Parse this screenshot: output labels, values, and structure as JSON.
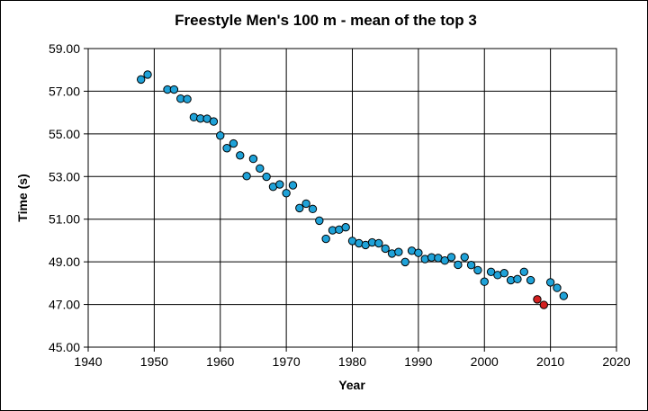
{
  "chart_data": {
    "type": "scatter",
    "title": "Freestyle Men's 100 m - mean of the top 3",
    "xlabel": "Year",
    "ylabel": "Time (s)",
    "xlim": [
      1940,
      2020
    ],
    "ylim": [
      45,
      59
    ],
    "xticks": [
      "1940",
      "1950",
      "1960",
      "1970",
      "1980",
      "1990",
      "2000",
      "2010",
      "2020"
    ],
    "yticks": [
      "45.00",
      "47.00",
      "49.00",
      "51.00",
      "53.00",
      "55.00",
      "57.00",
      "59.00"
    ],
    "grid": true,
    "legend": "none",
    "colors": {
      "main": "#1fa2d8",
      "highlight": "#d42020",
      "edge": "#000000",
      "grid": "#000000"
    },
    "series": [
      {
        "color": "#1fa2d8",
        "x": [
          1948,
          1949,
          1952,
          1953,
          1954,
          1955,
          1956,
          1957,
          1958,
          1959,
          1960,
          1961,
          1962,
          1963,
          1964,
          1965,
          1966,
          1967,
          1968,
          1969,
          1970,
          1971,
          1972,
          1973,
          1974,
          1975,
          1976,
          1977,
          1978,
          1979,
          1980,
          1981,
          1982,
          1983,
          1984,
          1985,
          1986,
          1987,
          1988,
          1989,
          1990,
          1991,
          1992,
          1993,
          1994,
          1995,
          1996,
          1997,
          1998,
          1999,
          2000,
          2001,
          2002,
          2003,
          2004,
          2005,
          2006,
          2007,
          2010,
          2011,
          2012
        ],
        "y": [
          57.55,
          57.78,
          57.08,
          57.08,
          56.65,
          56.63,
          55.78,
          55.72,
          55.71,
          55.58,
          54.92,
          54.33,
          54.55,
          53.99,
          53.02,
          53.83,
          53.38,
          52.99,
          52.52,
          52.63,
          52.22,
          52.59,
          51.52,
          51.73,
          51.48,
          50.93,
          50.08,
          50.48,
          50.51,
          50.62,
          49.98,
          49.87,
          49.79,
          49.91,
          49.87,
          49.62,
          49.39,
          49.46,
          48.99,
          49.52,
          49.42,
          49.13,
          49.21,
          49.18,
          49.06,
          49.22,
          48.86,
          49.22,
          48.85,
          48.61,
          48.07,
          48.53,
          48.38,
          48.47,
          48.14,
          48.19,
          48.53,
          48.14,
          48.04,
          47.78,
          47.4
        ]
      },
      {
        "color": "#d42020",
        "x": [
          2008,
          2009
        ],
        "y": [
          47.24,
          46.98
        ]
      }
    ]
  }
}
